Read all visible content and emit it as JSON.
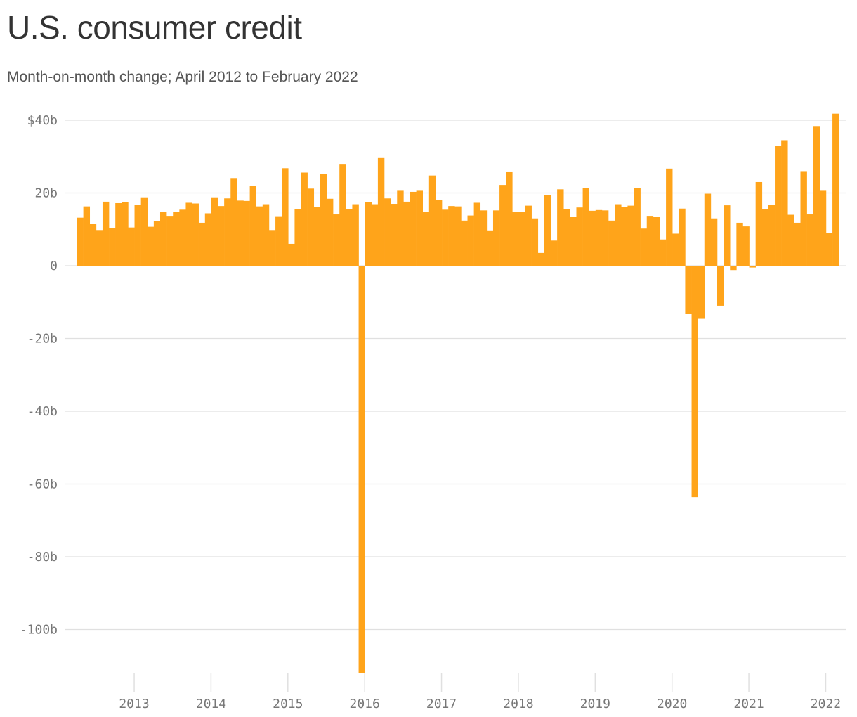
{
  "chart_data": {
    "type": "bar",
    "title": "U.S. consumer credit",
    "subtitle": "Month-on-month change; April 2012 to February 2022",
    "start": "2012-04",
    "values": [
      13.2,
      16.3,
      11.5,
      9.8,
      17.6,
      10.3,
      17.2,
      17.5,
      10.5,
      16.8,
      18.8,
      10.7,
      12.2,
      14.8,
      13.7,
      14.7,
      15.4,
      17.3,
      17.1,
      11.8,
      14.4,
      18.8,
      16.4,
      18.5,
      24.1,
      17.9,
      17.8,
      22.0,
      16.3,
      16.9,
      9.8,
      13.6,
      26.8,
      6.0,
      15.6,
      25.6,
      21.2,
      16.1,
      25.2,
      18.4,
      14.1,
      27.8,
      15.6,
      16.9,
      -112.0,
      17.5,
      16.9,
      29.6,
      18.5,
      17.0,
      20.6,
      17.6,
      20.3,
      20.6,
      14.8,
      24.8,
      18.0,
      15.4,
      16.4,
      16.3,
      12.4,
      13.8,
      17.3,
      15.2,
      9.7,
      15.2,
      22.2,
      25.9,
      14.8,
      14.8,
      16.5,
      13.0,
      3.5,
      19.4,
      6.9,
      21.0,
      15.6,
      13.4,
      16.0,
      21.4,
      15.1,
      15.3,
      15.2,
      12.4,
      16.9,
      16.1,
      16.5,
      21.4,
      10.2,
      13.7,
      13.4,
      7.2,
      26.7,
      8.8,
      15.7,
      -13.2,
      -63.6,
      -14.6,
      19.8,
      13.0,
      -11.0,
      16.6,
      -1.2,
      11.8,
      10.8,
      -0.5,
      23.0,
      15.5,
      16.7,
      33.0,
      34.5,
      14.0,
      11.8,
      26.0,
      14.1,
      38.4,
      20.6,
      8.9,
      41.8
    ],
    "ylim": [
      -112,
      41.8
    ],
    "yticks": [
      {
        "value": 40,
        "label": "$40b"
      },
      {
        "value": 20,
        "label": "20b"
      },
      {
        "value": 0,
        "label": "0"
      },
      {
        "value": -20,
        "label": "-20b"
      },
      {
        "value": -40,
        "label": "-40b"
      },
      {
        "value": -60,
        "label": "-60b"
      },
      {
        "value": -80,
        "label": "-80b"
      },
      {
        "value": -100,
        "label": "-100b"
      }
    ],
    "xticks": [
      "2013",
      "2014",
      "2015",
      "2016",
      "2017",
      "2018",
      "2019",
      "2020",
      "2021",
      "2022"
    ],
    "grid": true,
    "bar_color": "#FFA41A",
    "grid_color": "#e0e0e0",
    "tick_color": "#777777"
  }
}
